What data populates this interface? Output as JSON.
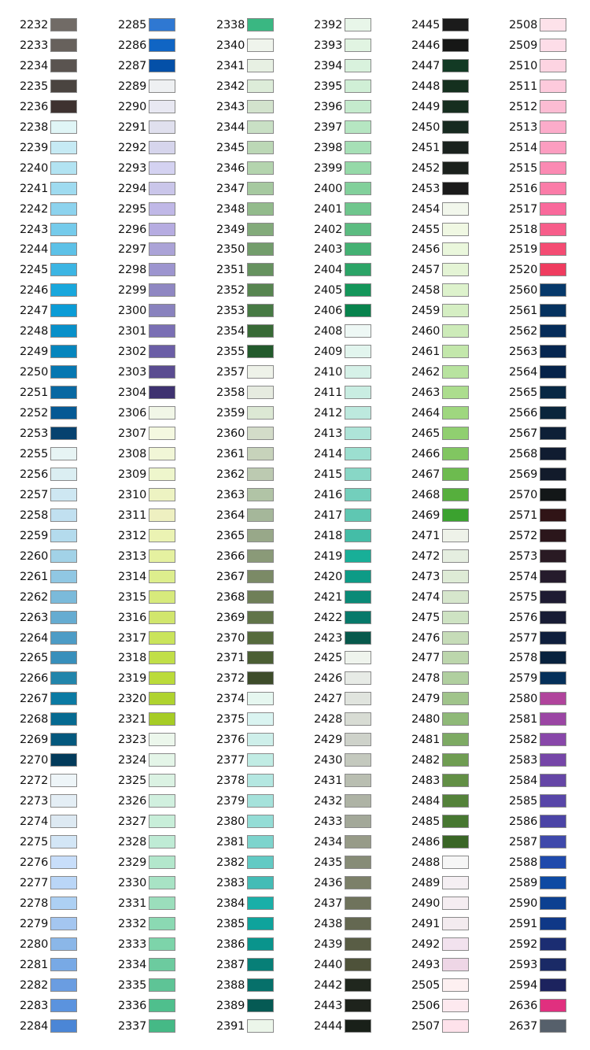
{
  "columns": [
    [
      [
        "2232",
        "#716b66"
      ],
      [
        "2233",
        "#67615c"
      ],
      [
        "2234",
        "#5a5450"
      ],
      [
        "2235",
        "#4a4440"
      ],
      [
        "2236",
        "#3e3230"
      ],
      [
        "2238",
        "#e0f5f6"
      ],
      [
        "2239",
        "#c6eaf4"
      ],
      [
        "2240",
        "#b2e3f2"
      ],
      [
        "2241",
        "#9fdbf0"
      ],
      [
        "2242",
        "#8dd3ee"
      ],
      [
        "2243",
        "#75cbeb"
      ],
      [
        "2244",
        "#5dc1e7"
      ],
      [
        "2245",
        "#3cb5e3"
      ],
      [
        "2246",
        "#19a7dc"
      ],
      [
        "2247",
        "#0b9cd6"
      ],
      [
        "2248",
        "#0890c9"
      ],
      [
        "2249",
        "#0585bd"
      ],
      [
        "2250",
        "#0677b1"
      ],
      [
        "2251",
        "#0868a2"
      ],
      [
        "2252",
        "#055994"
      ],
      [
        "2253",
        "#06426f"
      ],
      [
        "2255",
        "#e7f4f4"
      ],
      [
        "2256",
        "#dbeef2"
      ],
      [
        "2257",
        "#cee7f2"
      ],
      [
        "2258",
        "#c1e0f0"
      ],
      [
        "2259",
        "#b4dbed"
      ],
      [
        "2260",
        "#a2d2e7"
      ],
      [
        "2261",
        "#90c7e3"
      ],
      [
        "2262",
        "#7bbada"
      ],
      [
        "2263",
        "#66acd1"
      ],
      [
        "2264",
        "#4d9cc6"
      ],
      [
        "2265",
        "#388fbb"
      ],
      [
        "2266",
        "#2285ab"
      ],
      [
        "2267",
        "#0b7aa3"
      ],
      [
        "2268",
        "#066a91"
      ],
      [
        "2269",
        "#04587d"
      ],
      [
        "2270",
        "#023b5b"
      ],
      [
        "2272",
        "#eef5f8"
      ],
      [
        "2273",
        "#e4eef5"
      ],
      [
        "2274",
        "#dde9f2"
      ],
      [
        "2275",
        "#d3e6f6"
      ],
      [
        "2276",
        "#c8defa"
      ],
      [
        "2277",
        "#bad6f7"
      ],
      [
        "2278",
        "#add0f3"
      ],
      [
        "2279",
        "#a4c6f0"
      ],
      [
        "2280",
        "#8bb7e8"
      ],
      [
        "2281",
        "#78a9e5"
      ],
      [
        "2282",
        "#6a9de1"
      ],
      [
        "2283",
        "#5b93de"
      ],
      [
        "2284",
        "#4b86d6"
      ]
    ],
    [
      [
        "2285",
        "#2f78d2"
      ],
      [
        "2286",
        "#1065c4"
      ],
      [
        "2287",
        "#0450a8"
      ],
      [
        "2289",
        "#eef0f2"
      ],
      [
        "2290",
        "#e8e8f2"
      ],
      [
        "2291",
        "#e0e0ee"
      ],
      [
        "2292",
        "#d6d5ec"
      ],
      [
        "2293",
        "#d4d2f1"
      ],
      [
        "2294",
        "#cac6ea"
      ],
      [
        "2295",
        "#c0b8e7"
      ],
      [
        "2296",
        "#b6ace1"
      ],
      [
        "2297",
        "#aba3d7"
      ],
      [
        "2298",
        "#9d95cf"
      ],
      [
        "2299",
        "#8f87c2"
      ],
      [
        "2300",
        "#8982be"
      ],
      [
        "2301",
        "#7a6fb4"
      ],
      [
        "2302",
        "#6b5ea6"
      ],
      [
        "2303",
        "#5a4c91"
      ],
      [
        "2304",
        "#3e3270"
      ],
      [
        "2306",
        "#f1f6e7"
      ],
      [
        "2307",
        "#f4f8e0"
      ],
      [
        "2308",
        "#f1f6d7"
      ],
      [
        "2309",
        "#eef6cc"
      ],
      [
        "2310",
        "#edf3c2"
      ],
      [
        "2311",
        "#eef0c1"
      ],
      [
        "2312",
        "#ebf3b3"
      ],
      [
        "2313",
        "#e5f1a0"
      ],
      [
        "2314",
        "#ddee8d"
      ],
      [
        "2315",
        "#d7ea7c"
      ],
      [
        "2316",
        "#d1e66d"
      ],
      [
        "2317",
        "#cae45b"
      ],
      [
        "2318",
        "#c1df48"
      ],
      [
        "2319",
        "#bbdb3a"
      ],
      [
        "2320",
        "#afd32f"
      ],
      [
        "2321",
        "#a6cc25"
      ],
      [
        "2323",
        "#ecf7ec"
      ],
      [
        "2324",
        "#e4f5e8"
      ],
      [
        "2325",
        "#dbf2e3"
      ],
      [
        "2326",
        "#d1f0df"
      ],
      [
        "2327",
        "#c8eed9"
      ],
      [
        "2328",
        "#bfebd5"
      ],
      [
        "2329",
        "#b3e7cc"
      ],
      [
        "2330",
        "#a8e3c5"
      ],
      [
        "2331",
        "#9bdebc"
      ],
      [
        "2332",
        "#8bd9b3"
      ],
      [
        "2333",
        "#7dd4aa"
      ],
      [
        "2334",
        "#6ccb9f"
      ],
      [
        "2335",
        "#5ec496"
      ],
      [
        "2336",
        "#4fbf8d"
      ],
      [
        "2337",
        "#45b986"
      ]
    ],
    [
      [
        "2338",
        "#3ab782"
      ],
      [
        "2340",
        "#eff4ec"
      ],
      [
        "2341",
        "#e7f0e3"
      ],
      [
        "2342",
        "#ddecd9"
      ],
      [
        "2343",
        "#d3e3cd"
      ],
      [
        "2344",
        "#c9e0c5"
      ],
      [
        "2345",
        "#bcd8b6"
      ],
      [
        "2346",
        "#b4d4ae"
      ],
      [
        "2347",
        "#a6c9a0"
      ],
      [
        "2348",
        "#93bb8c"
      ],
      [
        "2349",
        "#83ab7b"
      ],
      [
        "2350",
        "#739d6c"
      ],
      [
        "2351",
        "#66925f"
      ],
      [
        "2352",
        "#578550"
      ],
      [
        "2353",
        "#477a44"
      ],
      [
        "2354",
        "#386a36"
      ],
      [
        "2355",
        "#235a2c"
      ],
      [
        "2357",
        "#eef2e9"
      ],
      [
        "2358",
        "#e6ebe0"
      ],
      [
        "2359",
        "#dce8d4"
      ],
      [
        "2360",
        "#d3dcc9"
      ],
      [
        "2361",
        "#c7d3bb"
      ],
      [
        "2362",
        "#bccab1"
      ],
      [
        "2363",
        "#b1c4a6"
      ],
      [
        "2364",
        "#a5b79a"
      ],
      [
        "2365",
        "#98a889"
      ],
      [
        "2366",
        "#8a9a78"
      ],
      [
        "2367",
        "#7b8a66"
      ],
      [
        "2368",
        "#6f7f58"
      ],
      [
        "2369",
        "#617449"
      ],
      [
        "2370",
        "#566b3d"
      ],
      [
        "2371",
        "#4b5e34"
      ],
      [
        "2372",
        "#3d4c2a"
      ],
      [
        "2374",
        "#e6f7f0"
      ],
      [
        "2375",
        "#daf4f1"
      ],
      [
        "2376",
        "#ceefea"
      ],
      [
        "2377",
        "#c1ece4"
      ],
      [
        "2378",
        "#b4e7e1"
      ],
      [
        "2379",
        "#a5e2db"
      ],
      [
        "2380",
        "#94ddd6"
      ],
      [
        "2381",
        "#7dd4cd"
      ],
      [
        "2382",
        "#62cac4"
      ],
      [
        "2383",
        "#44bcb6"
      ],
      [
        "2384",
        "#1aafa8"
      ],
      [
        "2385",
        "#0ea39c"
      ],
      [
        "2386",
        "#09948c"
      ],
      [
        "2387",
        "#077f77"
      ],
      [
        "2388",
        "#06706a"
      ],
      [
        "2389",
        "#055a54"
      ],
      [
        "2391",
        "#ecf6ea"
      ]
    ],
    [
      [
        "2392",
        "#e8f6e9"
      ],
      [
        "2393",
        "#e1f4e2"
      ],
      [
        "2394",
        "#d9f2dd"
      ],
      [
        "2395",
        "#d0efd6"
      ],
      [
        "2396",
        "#c5ebcd"
      ],
      [
        "2397",
        "#b6e6c2"
      ],
      [
        "2398",
        "#a6e0b6"
      ],
      [
        "2399",
        "#95d9a8"
      ],
      [
        "2400",
        "#82d09b"
      ],
      [
        "2401",
        "#6fc68d"
      ],
      [
        "2402",
        "#5cbc81"
      ],
      [
        "2403",
        "#44b173"
      ],
      [
        "2404",
        "#2ca467"
      ],
      [
        "2405",
        "#14965a"
      ],
      [
        "2406",
        "#08834d"
      ],
      [
        "2408",
        "#eef8f5"
      ],
      [
        "2409",
        "#e2f5ee"
      ],
      [
        "2410",
        "#d6f1e8"
      ],
      [
        "2411",
        "#c9ede2"
      ],
      [
        "2412",
        "#bde9de"
      ],
      [
        "2413",
        "#aee4d8"
      ],
      [
        "2414",
        "#9cdfd0"
      ],
      [
        "2415",
        "#88d7c6"
      ],
      [
        "2416",
        "#73cfbc"
      ],
      [
        "2417",
        "#5fc7b2"
      ],
      [
        "2418",
        "#44bda7"
      ],
      [
        "2419",
        "#18af98"
      ],
      [
        "2420",
        "#0d9b86"
      ],
      [
        "2421",
        "#0a8a77"
      ],
      [
        "2422",
        "#07796a"
      ],
      [
        "2423",
        "#07594c"
      ],
      [
        "2425",
        "#eff4ed"
      ],
      [
        "2426",
        "#e7ebe6"
      ],
      [
        "2427",
        "#e0e4de"
      ],
      [
        "2428",
        "#d8dcd4"
      ],
      [
        "2429",
        "#ced2ca"
      ],
      [
        "2430",
        "#c4c9be"
      ],
      [
        "2431",
        "#b9beb1"
      ],
      [
        "2432",
        "#aeb3a5"
      ],
      [
        "2433",
        "#a3a899"
      ],
      [
        "2434",
        "#979b88"
      ],
      [
        "2435",
        "#878c77"
      ],
      [
        "2436",
        "#7c8069"
      ],
      [
        "2437",
        "#6f735c"
      ],
      [
        "2438",
        "#646851"
      ],
      [
        "2439",
        "#595d45"
      ],
      [
        "2440",
        "#4e523a"
      ],
      [
        "2442",
        "#20271e"
      ],
      [
        "2443",
        "#1e231c"
      ],
      [
        "2444",
        "#192019"
      ]
    ],
    [
      [
        "2445",
        "#1b1b1b"
      ],
      [
        "2446",
        "#161716"
      ],
      [
        "2447",
        "#123a24"
      ],
      [
        "2448",
        "#15301f"
      ],
      [
        "2449",
        "#162e1f"
      ],
      [
        "2450",
        "#172a20"
      ],
      [
        "2451",
        "#1a221e"
      ],
      [
        "2452",
        "#1b211d"
      ],
      [
        "2453",
        "#1a1a1a"
      ],
      [
        "2454",
        "#f2f7ec"
      ],
      [
        "2455",
        "#f0f8e3"
      ],
      [
        "2456",
        "#eaf7dc"
      ],
      [
        "2457",
        "#e4f4d5"
      ],
      [
        "2458",
        "#ddf2cc"
      ],
      [
        "2459",
        "#d5eec3"
      ],
      [
        "2460",
        "#cdebb9"
      ],
      [
        "2461",
        "#c3e7ab"
      ],
      [
        "2462",
        "#b8e39f"
      ],
      [
        "2463",
        "#acdd8e"
      ],
      [
        "2464",
        "#9fd77f"
      ],
      [
        "2465",
        "#90cf70"
      ],
      [
        "2466",
        "#81c661"
      ],
      [
        "2467",
        "#6dbb4f"
      ],
      [
        "2468",
        "#56af3d"
      ],
      [
        "2469",
        "#3ba22f"
      ],
      [
        "2471",
        "#eef2e9"
      ],
      [
        "2472",
        "#e5eee0"
      ],
      [
        "2473",
        "#deebd6"
      ],
      [
        "2474",
        "#d6e6cc"
      ],
      [
        "2475",
        "#cee3c3"
      ],
      [
        "2476",
        "#c6dcb8"
      ],
      [
        "2477",
        "#bcd6ac"
      ],
      [
        "2478",
        "#b0cf9f"
      ],
      [
        "2479",
        "#a0c48b"
      ],
      [
        "2480",
        "#8fb978"
      ],
      [
        "2481",
        "#7daa63"
      ],
      [
        "2482",
        "#6f9d52"
      ],
      [
        "2483",
        "#628f45"
      ],
      [
        "2484",
        "#54823a"
      ],
      [
        "2485",
        "#477731"
      ],
      [
        "2486",
        "#3a6626"
      ],
      [
        "2488",
        "#f6f6f6"
      ],
      [
        "2489",
        "#f5eff3"
      ],
      [
        "2490",
        "#f5edf1"
      ],
      [
        "2491",
        "#f3ebef"
      ],
      [
        "2492",
        "#f2e2ee"
      ],
      [
        "2493",
        "#eed6e6"
      ],
      [
        "2505",
        "#fdf0f1"
      ],
      [
        "2506",
        "#fde9ef"
      ],
      [
        "2507",
        "#fee2eb"
      ]
    ],
    [
      [
        "2508",
        "#fde2ea"
      ],
      [
        "2509",
        "#fddde8"
      ],
      [
        "2510",
        "#fdd4e2"
      ],
      [
        "2511",
        "#fdcadc"
      ],
      [
        "2512",
        "#fcbcd3"
      ],
      [
        "2513",
        "#fcacca"
      ],
      [
        "2514",
        "#fc9dc0"
      ],
      [
        "2515",
        "#fb8ab3"
      ],
      [
        "2516",
        "#fb7ca8"
      ],
      [
        "2517",
        "#f9699b"
      ],
      [
        "2518",
        "#f75d8a"
      ],
      [
        "2519",
        "#f44c73"
      ],
      [
        "2520",
        "#ef3c5f"
      ],
      [
        "2560",
        "#06396b"
      ],
      [
        "2561",
        "#05325f"
      ],
      [
        "2562",
        "#052c59"
      ],
      [
        "2563",
        "#062650"
      ],
      [
        "2564",
        "#06234a"
      ],
      [
        "2565",
        "#082844"
      ],
      [
        "2566",
        "#0a253c"
      ],
      [
        "2567",
        "#0d1f37"
      ],
      [
        "2568",
        "#101c31"
      ],
      [
        "2569",
        "#121b2b"
      ],
      [
        "2570",
        "#131718"
      ],
      [
        "2571",
        "#301416"
      ],
      [
        "2572",
        "#2b161b"
      ],
      [
        "2573",
        "#291a23"
      ],
      [
        "2574",
        "#251b2c"
      ],
      [
        "2575",
        "#1e1b32"
      ],
      [
        "2576",
        "#181c35"
      ],
      [
        "2577",
        "#0f1f3d"
      ],
      [
        "2578",
        "#08223e"
      ],
      [
        "2579",
        "#05305a"
      ],
      [
        "2580",
        "#b0449c"
      ],
      [
        "2581",
        "#9b46a4"
      ],
      [
        "2582",
        "#8847a9"
      ],
      [
        "2583",
        "#7646a8"
      ],
      [
        "2584",
        "#6546a6"
      ],
      [
        "2585",
        "#5846a8"
      ],
      [
        "2586",
        "#4b44a6"
      ],
      [
        "2587",
        "#3f49ab"
      ],
      [
        "2588",
        "#1f4aac"
      ],
      [
        "2589",
        "#0e4aa3"
      ],
      [
        "2590",
        "#0c4091"
      ],
      [
        "2591",
        "#0f3887"
      ],
      [
        "2592",
        "#1b2d72"
      ],
      [
        "2593",
        "#1a2a66"
      ],
      [
        "2594",
        "#1c235e"
      ],
      [
        "2636",
        "#e0307f"
      ],
      [
        "2637",
        "#56606b"
      ]
    ]
  ]
}
